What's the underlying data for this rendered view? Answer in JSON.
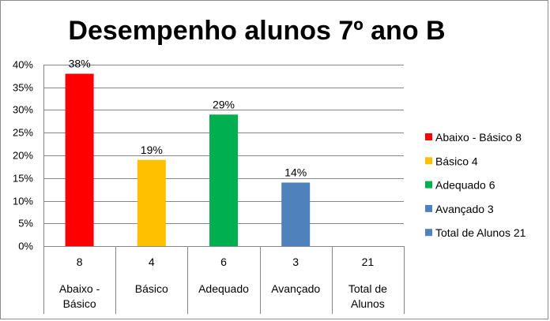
{
  "chart_data": {
    "type": "bar",
    "title": "Desempenho alunos 7º ano B",
    "ylim": [
      0,
      0.4
    ],
    "yticks": [
      "0%",
      "5%",
      "10%",
      "15%",
      "20%",
      "25%",
      "30%",
      "35%",
      "40%"
    ],
    "grid": true,
    "legend_position": "right",
    "categories": [
      {
        "count": "8",
        "lines": [
          "Abaixo -",
          "Básico"
        ]
      },
      {
        "count": "4",
        "lines": [
          "Básico"
        ]
      },
      {
        "count": "6",
        "lines": [
          "Adequado"
        ]
      },
      {
        "count": "3",
        "lines": [
          "Avançado"
        ]
      },
      {
        "count": "21",
        "lines": [
          "Total de",
          "Alunos"
        ]
      }
    ],
    "values": [
      0.38,
      0.19,
      0.29,
      0.14,
      0
    ],
    "data_labels": [
      "38%",
      "19%",
      "29%",
      "14%",
      ""
    ],
    "colors": [
      "#ff0000",
      "#ffc000",
      "#00b050",
      "#4f81bd",
      "#4f81bd"
    ],
    "legend": [
      {
        "label": "Abaixo - Básico 8",
        "color": "#ff0000"
      },
      {
        "label": "Básico 4",
        "color": "#ffc000"
      },
      {
        "label": "Adequado 6",
        "color": "#00b050"
      },
      {
        "label": "Avançado 3",
        "color": "#4f81bd"
      },
      {
        "label": "Total de Alunos 21",
        "color": "#4f81bd"
      }
    ]
  }
}
